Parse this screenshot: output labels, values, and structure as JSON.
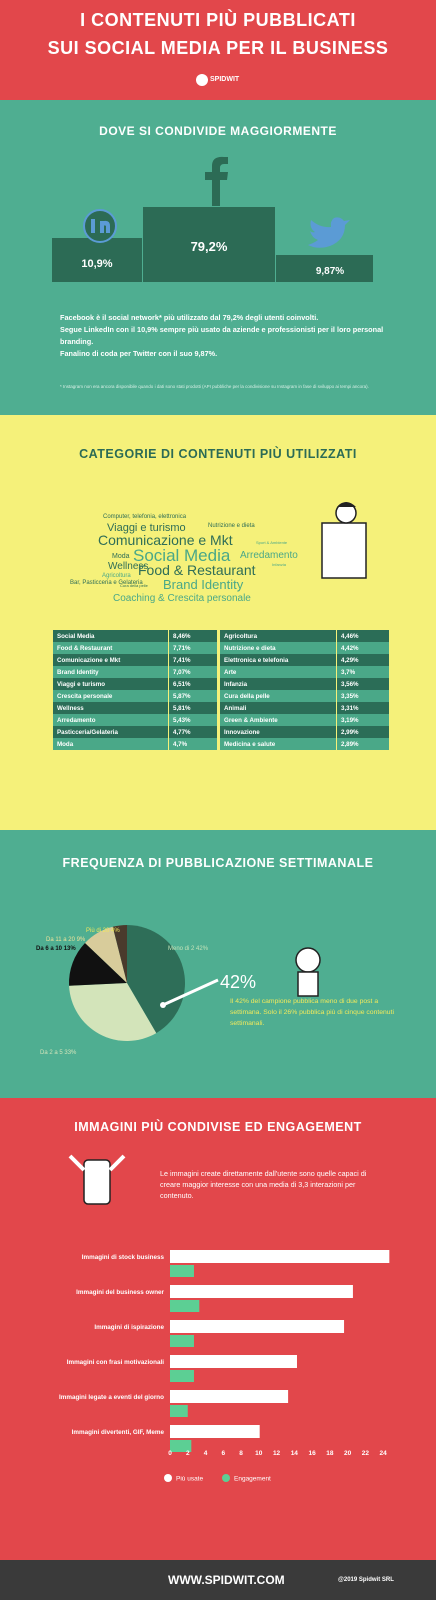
{
  "header": {
    "title_line1": "I CONTENUTI PIÙ PUBBLICATI",
    "title_line2": "SUI SOCIAL MEDIA PER IL BUSINESS",
    "logo": "SPIDWIT"
  },
  "social": {
    "title": "DOVE SI CONDIVIDE MAGGIORMENTE",
    "podium": [
      "10,9%",
      "79,2%",
      "9,87%"
    ],
    "paragraphs": [
      "Facebook è il social network* più utilizzato dal 79,2% degli utenti coinvolti.",
      "Segue LinkedIn con il 10,9% sempre più usato da aziende e professionisti per il loro personal branding.",
      "Fanalino di coda per Twitter con il suo 9,87%."
    ],
    "footnote": "* Instagram non era ancora disponibile quando i dati sono stati prodotti (API pubbliche per la condivisione su Instagram in fase di sviluppo ai tempi ancora)."
  },
  "categories": {
    "title": "CATEGORIE DI CONTENUTI PIÙ UTILIZZATI",
    "word_cloud": [
      "Computer, telefonia, elettronica",
      "Viaggi e turismo",
      "Nutrizione e dieta",
      "Comunicazione e Mkt",
      "Sport & Ambiente",
      "Moda",
      "Social Media",
      "Arredamento",
      "Wellness",
      "Infanzia",
      "Food & Restaurant",
      "Agricoltura",
      "Bar, Pasticceria e Gelateria",
      "Cura della pelle",
      "Brand Identity",
      "Coaching & Crescita personale"
    ],
    "table": {
      "rows": [
        [
          "Social Media",
          "8,46%",
          "Agricoltura",
          "4,46%"
        ],
        [
          "Food & Restaurant",
          "7,71%",
          "Nutrizione e dieta",
          "4,42%"
        ],
        [
          "Comunicazione e Mkt",
          "7,41%",
          "Elettronica e telefonia",
          "4,29%"
        ],
        [
          "Brand Identity",
          "7,07%",
          "Arte",
          "3,7%"
        ],
        [
          "Viaggi e turismo",
          "6,51%",
          "Infanzia",
          "3,56%"
        ],
        [
          "Crescita personale",
          "5,87%",
          "Cura della pelle",
          "3,35%"
        ],
        [
          "Wellness",
          "5,81%",
          "Animali",
          "3,31%"
        ],
        [
          "Arredamento",
          "5,43%",
          "Green & Ambiente",
          "3,19%"
        ],
        [
          "Pasticceria/Gelateria",
          "4,77%",
          "Innovazione",
          "2,99%"
        ],
        [
          "Moda",
          "4,7%",
          "Medicina e salute",
          "2,89%"
        ]
      ]
    }
  },
  "frequency": {
    "title": "FREQUENZA DI PUBBLICAZIONE SETTIMANALE",
    "highlight": "42%",
    "text": "Il 42% del campione pubblica meno di due post a settimana. Solo il 26% pubblica più di cinque contenuti settimanali."
  },
  "images": {
    "title": "IMMAGINI PIÙ CONDIVISE ED ENGAGEMENT",
    "text": "Le immagini create direttamente dall'utente sono quelle capaci di creare maggior interesse con una media di 3,3 interazioni per contenuto."
  },
  "footer": {
    "website": "WWW.SPIDWIT.COM",
    "copyright": "@2019 Spidwit SRL"
  },
  "chart_data": [
    {
      "type": "pie",
      "categories": [
        "Meno di 2",
        "Da 2 a 5",
        "Da 6 a 10",
        "Da 11 a 20",
        "Più di 20"
      ],
      "values": [
        42,
        33,
        13,
        9,
        4
      ],
      "value_labels": [
        "42%",
        "33%",
        "13%",
        "9%",
        "4%"
      ],
      "colors": [
        "#2e6e58",
        "#d3e4ba",
        "#111111",
        "#d8cc9b",
        "#4a3a2c"
      ]
    },
    {
      "type": "bar",
      "orientation": "horizontal",
      "categories": [
        "Immagini di stock business",
        "Immagini del business owner",
        "Immagini di ispirazione",
        "Immagini con frasi motivazionali",
        "Immagini legate a eventi del giorno",
        "Immagini divertenti, GIF, Meme"
      ],
      "series": [
        {
          "name": "Più usate",
          "color": "#ffffff",
          "values": [
            24.7,
            20.6,
            19.6,
            14.3,
            13.3,
            10.1
          ]
        },
        {
          "name": "Engagement",
          "color": "#5ccf94",
          "values": [
            2.7,
            3.3,
            2.7,
            2.7,
            2,
            2.4
          ]
        }
      ],
      "xlim": [
        0,
        25
      ],
      "xticks": [
        0,
        2,
        4,
        6,
        8,
        10,
        12,
        14,
        16,
        18,
        20,
        22,
        24
      ],
      "legend": "bottom"
    }
  ]
}
